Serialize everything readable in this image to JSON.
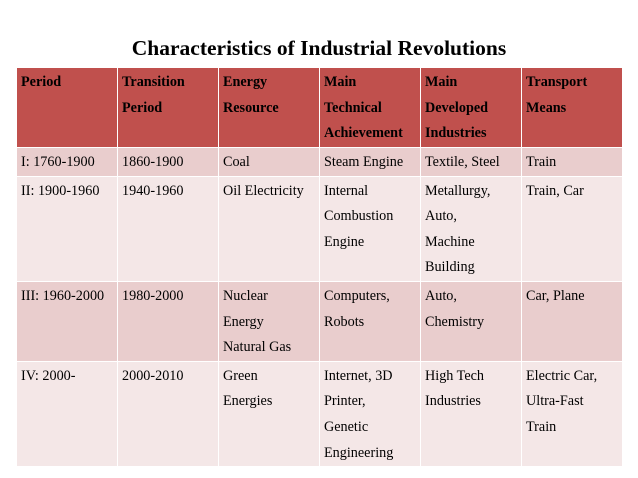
{
  "title": "Characteristics of Industrial Revolutions",
  "table": {
    "headers": [
      "Period",
      "Transition\nPeriod",
      "Energy\nResource",
      "Main\nTechnical\nAchievement",
      "Main\nDeveloped\nIndustries",
      "Transport\nMeans"
    ],
    "rows": [
      [
        "I: 1760-1900",
        "1860-1900",
        "Coal",
        "Steam Engine",
        "Textile, Steel",
        "Train"
      ],
      [
        "II: 1900-1960",
        "1940-1960",
        "Oil Electricity",
        "Internal\nCombustion\nEngine",
        "Metallurgy,\nAuto,\nMachine\nBuilding",
        "Train, Car"
      ],
      [
        "III: 1960-2000",
        "1980-2000",
        "Nuclear\nEnergy\nNatural Gas",
        "Computers,\nRobots",
        "Auto,\nChemistry",
        "Car, Plane"
      ],
      [
        "IV: 2000-",
        "2000-2010",
        "Green\nEnergies",
        "Internet, 3D\nPrinter,\nGenetic\nEngineering",
        "High Tech\nIndustries",
        "Electric Car,\nUltra-Fast\nTrain"
      ]
    ]
  },
  "colors": {
    "header_bg": "#c0504d",
    "row_dark": "#e9cdcd",
    "row_light": "#f4e7e7"
  }
}
